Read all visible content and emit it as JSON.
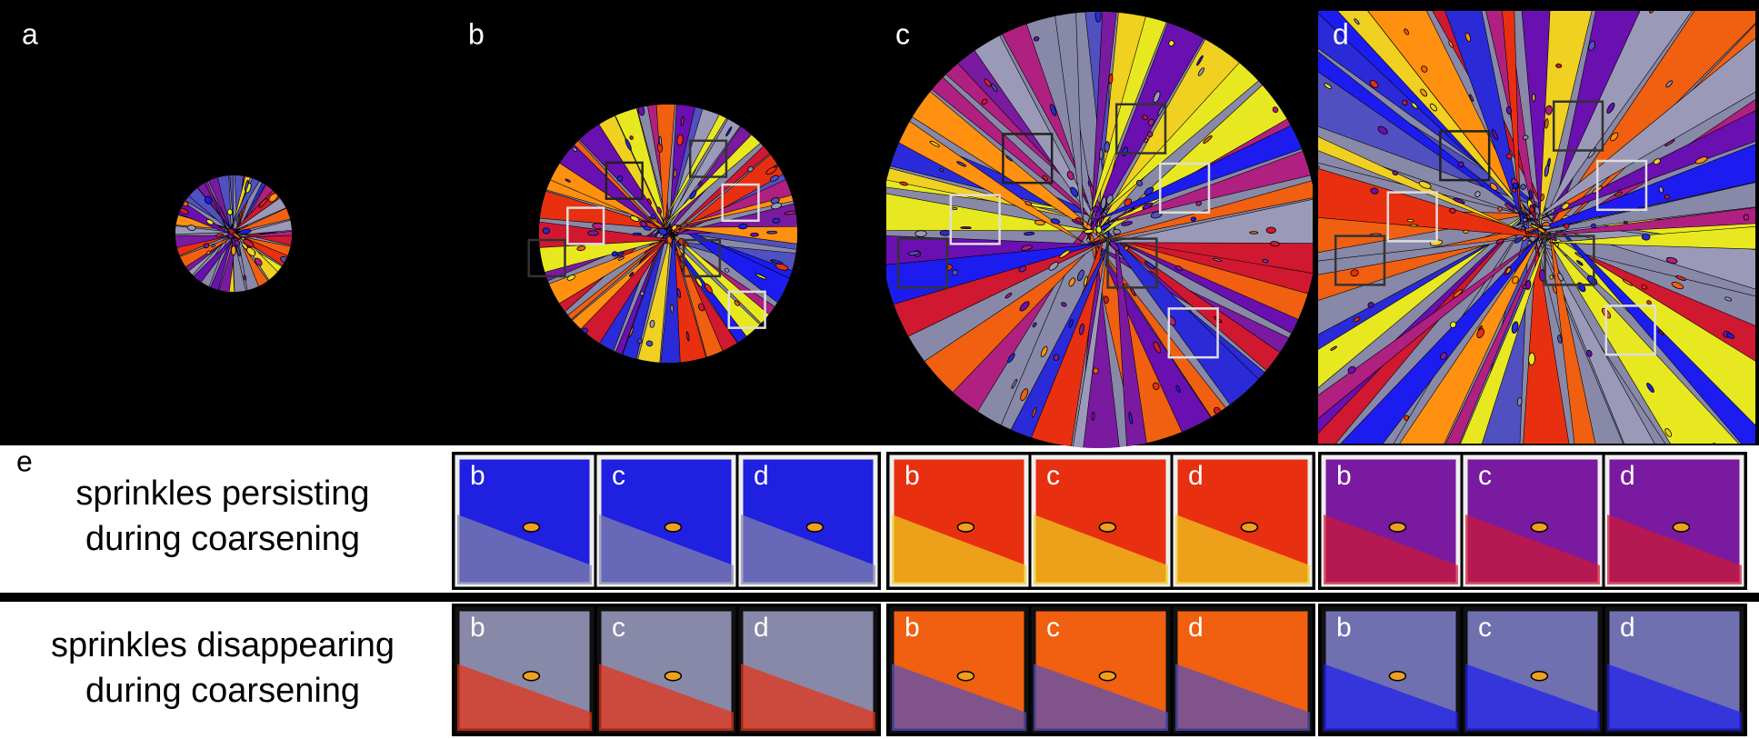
{
  "panels": [
    {
      "label": "a"
    },
    {
      "label": "b"
    },
    {
      "label": "c"
    },
    {
      "label": "d"
    }
  ],
  "section_label": "e",
  "rows": [
    {
      "title_lines": [
        "sprinkles persisting",
        "during coarsening"
      ],
      "groups": [
        [
          "b",
          "c",
          "d"
        ],
        [
          "b",
          "c",
          "d"
        ],
        [
          "b",
          "c",
          "d"
        ]
      ]
    },
    {
      "title_lines": [
        "sprinkles disappearing",
        "during coarsening"
      ],
      "groups": [
        [
          "b",
          "c",
          "d"
        ],
        [
          "b",
          "c",
          "d"
        ],
        [
          "b",
          "c",
          "d"
        ]
      ]
    }
  ]
}
